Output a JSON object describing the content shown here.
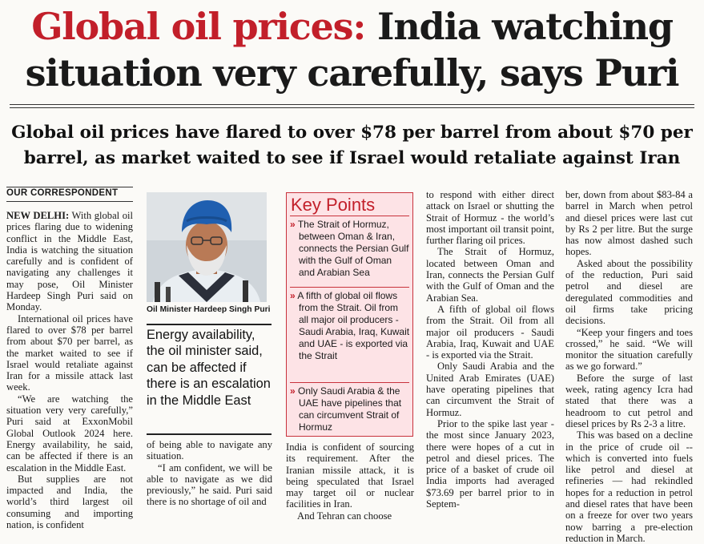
{
  "headline": {
    "red": "Global oil prices:",
    "black1": "India watching",
    "black2": "situation very carefully, says Puri"
  },
  "subhead": {
    "line1": "Global oil prices have flared to over $78 per barrel from about $70 per",
    "line2": "barrel, as market waited to see if Israel would retaliate against Iran"
  },
  "byline": "OUR CORRESPONDENT",
  "col1": {
    "dateline": "NEW DELHI:",
    "p1": "With global oil prices flaring due to widening conflict in the Middle East, India is watching the situation carefully and is confident of navigating any challenges it may pose, Oil Minister Hardeep Singh Puri said on Monday.",
    "p2": "International oil prices have flared to over $78 per barrel from about $70 per barrel, as the market waited to see if Israel would retaliate against Iran for a missile attack last week.",
    "p3": "“We are watching the situation very very carefully,” Puri said at ExxonMobil Global Outlook 2024 here. Energy availability, he said, can be affected if there is an escalation in the Middle East.",
    "p4": "But supplies are not impacted and India, the world’s third largest oil consuming and importing nation, is confident"
  },
  "photo": {
    "caption": "Oil Minister Hardeep Singh Puri"
  },
  "pullquote": "Energy availability, the oil minister said, can be affected if there is an escalation in the Middle East",
  "col2": {
    "p1": "of being able to navigate any situation.",
    "p2": "“I am confident, we will be able to navigate as we did previously,” he said. Puri said there is no shortage of oil and"
  },
  "keypoints": {
    "title": "Key Points",
    "arrow": "»",
    "items": [
      "The Strait of Hormuz, between Oman & Iran, connects the Persian Gulf with the Gulf of Oman and Arabian Sea",
      "A fifth of global oil flows from the Strait. Oil from all major oil producers - Saudi Arabia, Iraq, Kuwait and UAE - is exported via the Strait",
      "Only Saudi Arabia & the UAE have pipelines that can circumvent Strait of Hormuz"
    ]
  },
  "col3": {
    "p1": "India is confident of sourcing its requirement. After the Iranian missile attack, it is being speculated that Israel may target oil or nuclear facilities in Iran.",
    "p2": "And Tehran can choose"
  },
  "col4": {
    "p1": "to respond with either direct attack on Israel or shutting the Strait of Hormuz - the world’s most important oil transit point, further flaring oil prices.",
    "p2": "The Strait of Hormuz, located between Oman and Iran, connects the Persian Gulf with the Gulf of Oman and the Arabian Sea.",
    "p3": "A fifth of global oil flows from the Strait. Oil from all major oil producers - Saudi Arabia, Iraq, Kuwait and UAE - is exported via the Strait.",
    "p4": "Only Saudi Arabia and the United Arab Emirates (UAE) have operating pipelines that can circumvent the Strait of Hormuz.",
    "p5": "Prior to the spike last year - the most since January 2023, there were hopes of a cut in petrol and diesel prices. The price of a basket of crude oil India imports had averaged $73.69 per barrel prior to in Septem-"
  },
  "col5": {
    "p1": "ber, down from about $83-84 a barrel in March when petrol and diesel prices were last cut by Rs 2 per litre. But the surge has now almost dashed such hopes.",
    "p2": "Asked about the possibility of the reduction, Puri said petrol and diesel are deregulated commodities and oil firms take pricing decisions.",
    "p3": "“Keep your fingers and toes crossed,” he said. “We will monitor the situation carefully as we go forward.”",
    "p4": "Before the surge of last week, rating agency Icra had stated that there was a headroom to cut petrol and diesel prices by Rs 2-3 a litre.",
    "p5": "This was based on a decline in the price of crude oil -- which is converted into fuels like petrol and diesel at refineries — had rekindled hopes for a reduction in petrol and diesel rates that have been on a freeze for over two years now barring a pre-election reduction in March."
  }
}
